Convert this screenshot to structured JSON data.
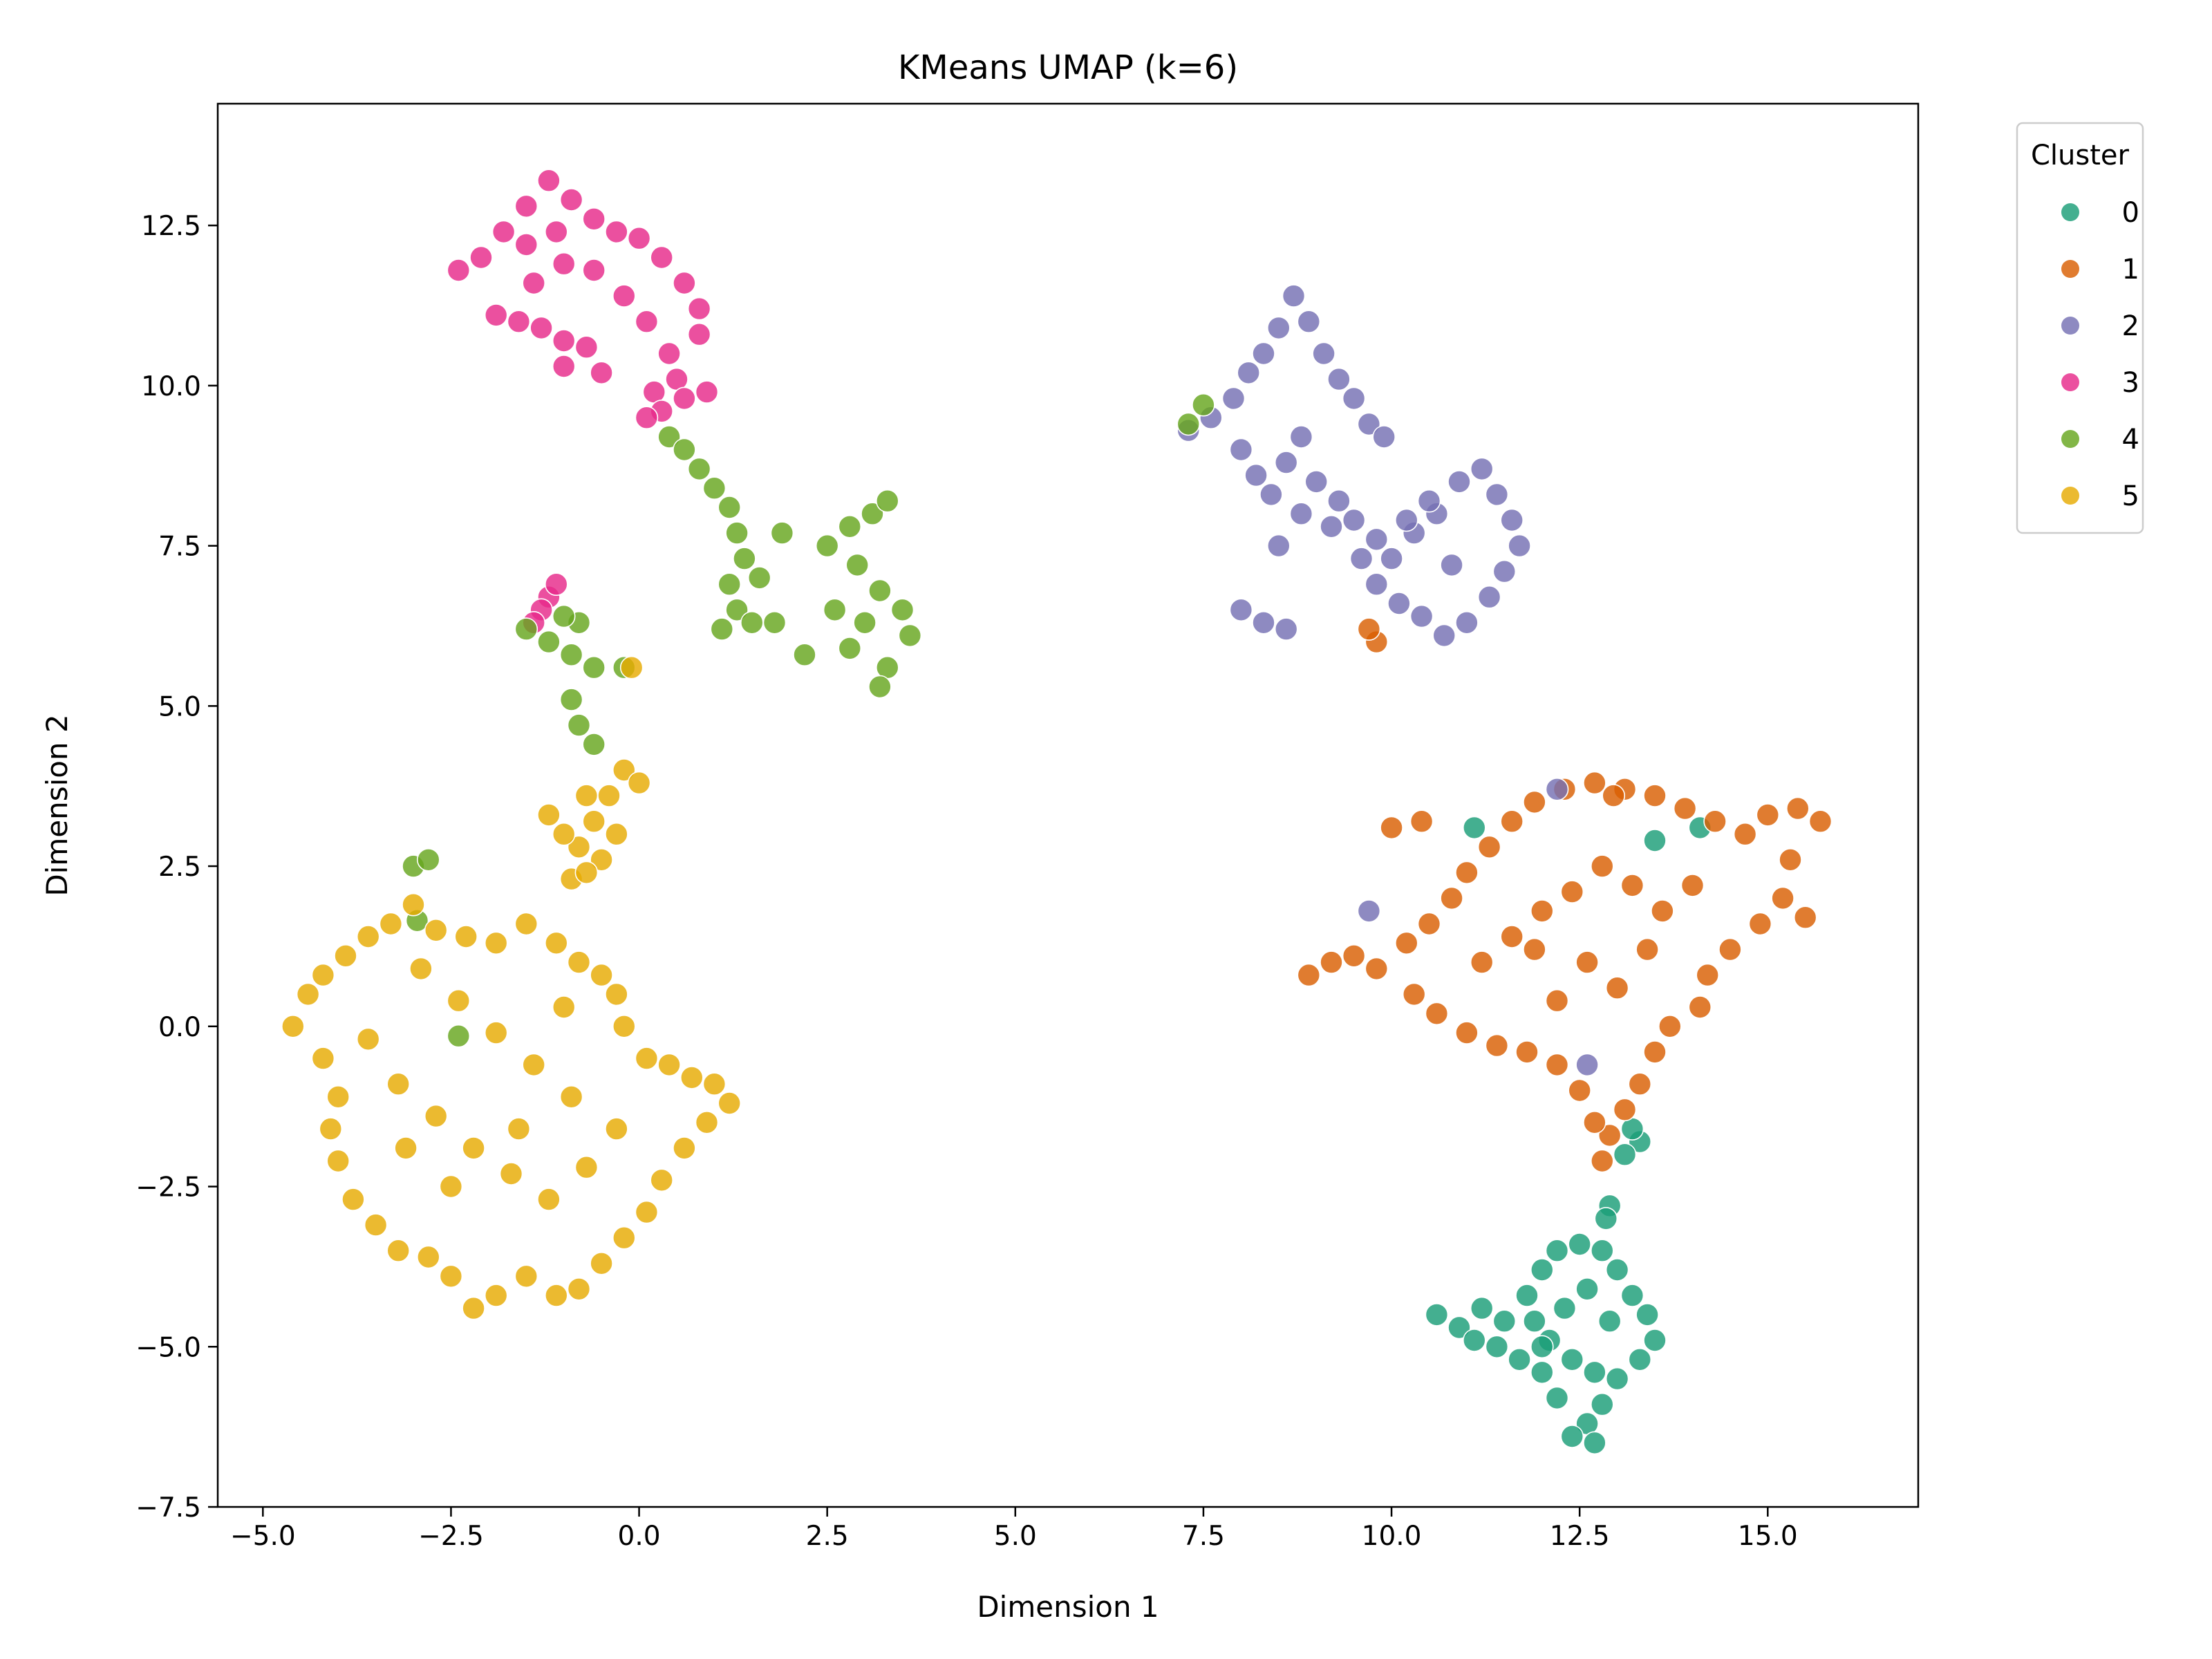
{
  "chart_data": {
    "type": "scatter",
    "title": "KMeans UMAP (k=6)",
    "xlabel": "Dimension 1",
    "ylabel": "Dimension 2",
    "xlim": [
      -5.6,
      17.0
    ],
    "ylim": [
      -7.5,
      14.4
    ],
    "xticks": [
      -5.0,
      -2.5,
      0.0,
      2.5,
      5.0,
      7.5,
      10.0,
      12.5,
      15.0
    ],
    "xtick_labels": [
      "−5.0",
      "−2.5",
      "0.0",
      "2.5",
      "5.0",
      "7.5",
      "10.0",
      "12.5",
      "15.0"
    ],
    "yticks": [
      -7.5,
      -5.0,
      -2.5,
      0.0,
      2.5,
      5.0,
      7.5,
      10.0,
      12.5
    ],
    "ytick_labels": [
      "−7.5",
      "−5.0",
      "−2.5",
      "0.0",
      "2.5",
      "5.0",
      "7.5",
      "10.0",
      "12.5"
    ],
    "grid": false,
    "legend": {
      "title": "Cluster",
      "placement": "outside-top-right"
    },
    "series": [
      {
        "name": "0",
        "color": "#1b9e77",
        "points": [
          [
            10.6,
            -4.5
          ],
          [
            10.9,
            -4.7
          ],
          [
            11.2,
            -4.4
          ],
          [
            11.5,
            -4.6
          ],
          [
            11.8,
            -4.2
          ],
          [
            12.0,
            -3.8
          ],
          [
            12.2,
            -3.5
          ],
          [
            12.5,
            -3.4
          ],
          [
            12.8,
            -3.5
          ],
          [
            13.0,
            -3.8
          ],
          [
            13.2,
            -4.2
          ],
          [
            13.4,
            -4.5
          ],
          [
            13.5,
            -4.9
          ],
          [
            13.3,
            -5.2
          ],
          [
            13.0,
            -5.5
          ],
          [
            12.8,
            -5.9
          ],
          [
            12.6,
            -6.2
          ],
          [
            12.4,
            -6.4
          ],
          [
            12.7,
            -6.5
          ],
          [
            12.2,
            -5.8
          ],
          [
            12.0,
            -5.4
          ],
          [
            11.7,
            -5.2
          ],
          [
            11.4,
            -5.0
          ],
          [
            11.1,
            -4.9
          ],
          [
            12.3,
            -4.4
          ],
          [
            12.6,
            -4.1
          ],
          [
            12.9,
            -4.6
          ],
          [
            12.1,
            -4.9
          ],
          [
            12.4,
            -5.2
          ],
          [
            12.7,
            -5.4
          ],
          [
            12.9,
            -2.8
          ],
          [
            12.85,
            -3.0
          ],
          [
            13.3,
            -1.8
          ],
          [
            13.2,
            -1.6
          ],
          [
            13.1,
            -2.0
          ],
          [
            11.1,
            3.1
          ],
          [
            14.1,
            3.1
          ],
          [
            13.5,
            2.9
          ],
          [
            12.0,
            -5.0
          ],
          [
            11.9,
            -4.6
          ]
        ]
      },
      {
        "name": "1",
        "color": "#d95f02",
        "points": [
          [
            8.9,
            0.8
          ],
          [
            9.2,
            1.0
          ],
          [
            9.5,
            1.1
          ],
          [
            9.8,
            0.9
          ],
          [
            10.2,
            1.3
          ],
          [
            10.5,
            1.6
          ],
          [
            10.8,
            2.0
          ],
          [
            11.0,
            2.4
          ],
          [
            11.3,
            2.8
          ],
          [
            11.6,
            3.2
          ],
          [
            11.9,
            3.5
          ],
          [
            12.3,
            3.7
          ],
          [
            12.7,
            3.8
          ],
          [
            13.1,
            3.7
          ],
          [
            13.5,
            3.6
          ],
          [
            13.9,
            3.4
          ],
          [
            14.3,
            3.2
          ],
          [
            14.7,
            3.0
          ],
          [
            15.0,
            3.3
          ],
          [
            15.4,
            3.4
          ],
          [
            15.7,
            3.2
          ],
          [
            15.3,
            2.6
          ],
          [
            15.2,
            2.0
          ],
          [
            14.9,
            1.6
          ],
          [
            14.5,
            1.2
          ],
          [
            14.2,
            0.8
          ],
          [
            14.1,
            0.3
          ],
          [
            13.7,
            0.0
          ],
          [
            13.5,
            -0.4
          ],
          [
            13.3,
            -0.9
          ],
          [
            13.1,
            -1.3
          ],
          [
            12.9,
            -1.7
          ],
          [
            12.8,
            -2.1
          ],
          [
            12.7,
            -1.5
          ],
          [
            12.5,
            -1.0
          ],
          [
            12.2,
            -0.6
          ],
          [
            11.8,
            -0.4
          ],
          [
            11.4,
            -0.3
          ],
          [
            11.0,
            -0.1
          ],
          [
            10.6,
            0.2
          ],
          [
            10.3,
            0.5
          ],
          [
            11.2,
            1.0
          ],
          [
            11.6,
            1.4
          ],
          [
            12.0,
            1.8
          ],
          [
            12.4,
            2.1
          ],
          [
            12.8,
            2.5
          ],
          [
            13.2,
            2.2
          ],
          [
            13.6,
            1.8
          ],
          [
            14.0,
            2.2
          ],
          [
            12.6,
            1.0
          ],
          [
            12.2,
            0.4
          ],
          [
            11.9,
            1.2
          ],
          [
            13.0,
            0.6
          ],
          [
            13.4,
            1.2
          ],
          [
            10.0,
            3.1
          ],
          [
            10.4,
            3.2
          ],
          [
            9.8,
            6.0
          ],
          [
            9.7,
            6.2
          ],
          [
            15.5,
            1.7
          ],
          [
            12.95,
            3.6
          ]
        ]
      },
      {
        "name": "2",
        "color": "#7570b3",
        "points": [
          [
            7.3,
            9.3
          ],
          [
            7.6,
            9.5
          ],
          [
            7.9,
            9.8
          ],
          [
            8.1,
            10.2
          ],
          [
            8.3,
            10.5
          ],
          [
            8.5,
            10.9
          ],
          [
            8.7,
            11.4
          ],
          [
            8.9,
            11.0
          ],
          [
            9.1,
            10.5
          ],
          [
            9.3,
            10.1
          ],
          [
            9.5,
            9.8
          ],
          [
            9.7,
            9.4
          ],
          [
            8.0,
            9.0
          ],
          [
            8.2,
            8.6
          ],
          [
            8.4,
            8.3
          ],
          [
            8.6,
            8.8
          ],
          [
            8.8,
            9.2
          ],
          [
            9.0,
            8.5
          ],
          [
            9.3,
            8.2
          ],
          [
            9.5,
            7.9
          ],
          [
            9.8,
            7.6
          ],
          [
            10.0,
            7.3
          ],
          [
            10.3,
            7.7
          ],
          [
            10.6,
            8.0
          ],
          [
            10.9,
            8.5
          ],
          [
            11.2,
            8.7
          ],
          [
            11.4,
            8.3
          ],
          [
            11.6,
            7.9
          ],
          [
            11.7,
            7.5
          ],
          [
            11.5,
            7.1
          ],
          [
            11.3,
            6.7
          ],
          [
            11.0,
            6.3
          ],
          [
            10.7,
            6.1
          ],
          [
            10.4,
            6.4
          ],
          [
            10.1,
            6.6
          ],
          [
            9.8,
            6.9
          ],
          [
            9.6,
            7.3
          ],
          [
            9.2,
            7.8
          ],
          [
            8.8,
            8.0
          ],
          [
            8.5,
            7.5
          ],
          [
            8.0,
            6.5
          ],
          [
            8.3,
            6.3
          ],
          [
            8.6,
            6.2
          ],
          [
            9.9,
            9.2
          ],
          [
            10.5,
            8.2
          ],
          [
            10.8,
            7.2
          ],
          [
            9.7,
            1.8
          ],
          [
            12.2,
            3.7
          ],
          [
            12.6,
            -0.6
          ],
          [
            10.2,
            7.9
          ]
        ]
      },
      {
        "name": "3",
        "color": "#e7298a",
        "points": [
          [
            -2.4,
            11.8
          ],
          [
            -2.1,
            12.0
          ],
          [
            -1.8,
            12.4
          ],
          [
            -1.5,
            12.8
          ],
          [
            -1.2,
            13.2
          ],
          [
            -0.9,
            12.9
          ],
          [
            -0.6,
            12.6
          ],
          [
            -0.3,
            12.4
          ],
          [
            0.0,
            12.3
          ],
          [
            0.3,
            12.0
          ],
          [
            0.6,
            11.6
          ],
          [
            0.8,
            11.2
          ],
          [
            -1.9,
            11.1
          ],
          [
            -1.6,
            11.0
          ],
          [
            -1.3,
            10.9
          ],
          [
            -1.0,
            10.7
          ],
          [
            -0.7,
            10.6
          ],
          [
            -0.5,
            10.2
          ],
          [
            -1.4,
            11.6
          ],
          [
            -1.0,
            11.9
          ],
          [
            -0.6,
            11.8
          ],
          [
            -0.2,
            11.4
          ],
          [
            0.1,
            11.0
          ],
          [
            0.4,
            10.5
          ],
          [
            0.5,
            10.1
          ],
          [
            0.2,
            9.9
          ],
          [
            0.6,
            9.8
          ],
          [
            0.9,
            9.9
          ],
          [
            0.3,
            9.6
          ],
          [
            0.1,
            9.5
          ],
          [
            -1.5,
            12.2
          ],
          [
            -1.1,
            12.4
          ],
          [
            -1.0,
            10.3
          ],
          [
            -1.2,
            6.7
          ],
          [
            -1.1,
            6.9
          ],
          [
            -1.3,
            6.5
          ],
          [
            -1.4,
            6.3
          ],
          [
            0.8,
            10.8
          ]
        ]
      },
      {
        "name": "4",
        "color": "#66a61e",
        "points": [
          [
            0.4,
            9.2
          ],
          [
            0.6,
            9.0
          ],
          [
            0.8,
            8.7
          ],
          [
            1.0,
            8.4
          ],
          [
            1.2,
            8.1
          ],
          [
            1.3,
            7.7
          ],
          [
            1.4,
            7.3
          ],
          [
            1.2,
            6.9
          ],
          [
            1.3,
            6.5
          ],
          [
            1.1,
            6.2
          ],
          [
            1.5,
            6.3
          ],
          [
            1.8,
            6.3
          ],
          [
            1.6,
            7.0
          ],
          [
            1.9,
            7.7
          ],
          [
            2.5,
            7.5
          ],
          [
            2.8,
            7.8
          ],
          [
            3.1,
            8.0
          ],
          [
            3.3,
            8.2
          ],
          [
            2.9,
            7.2
          ],
          [
            3.2,
            6.8
          ],
          [
            3.5,
            6.5
          ],
          [
            3.6,
            6.1
          ],
          [
            3.3,
            5.6
          ],
          [
            3.2,
            5.3
          ],
          [
            2.8,
            5.9
          ],
          [
            2.6,
            6.5
          ],
          [
            3.0,
            6.3
          ],
          [
            2.2,
            5.8
          ],
          [
            -1.5,
            6.2
          ],
          [
            -1.2,
            6.0
          ],
          [
            -0.9,
            5.8
          ],
          [
            -0.6,
            5.6
          ],
          [
            -0.8,
            6.3
          ],
          [
            -1.0,
            6.4
          ],
          [
            -0.9,
            5.1
          ],
          [
            -0.8,
            4.7
          ],
          [
            -0.6,
            4.4
          ],
          [
            -3.0,
            2.5
          ],
          [
            -2.8,
            2.6
          ],
          [
            -2.95,
            1.65
          ],
          [
            -2.4,
            -0.15
          ],
          [
            -0.2,
            5.6
          ],
          [
            7.3,
            9.4
          ],
          [
            7.5,
            9.7
          ]
        ]
      },
      {
        "name": "5",
        "color": "#e6ab02",
        "points": [
          [
            -4.6,
            0.0
          ],
          [
            -4.4,
            0.5
          ],
          [
            -4.2,
            0.8
          ],
          [
            -3.9,
            1.1
          ],
          [
            -3.6,
            1.4
          ],
          [
            -3.3,
            1.6
          ],
          [
            -3.0,
            1.9
          ],
          [
            -2.7,
            1.5
          ],
          [
            -2.3,
            1.4
          ],
          [
            -1.9,
            1.3
          ],
          [
            -1.5,
            1.6
          ],
          [
            -1.1,
            1.3
          ],
          [
            -0.8,
            1.0
          ],
          [
            -0.5,
            0.8
          ],
          [
            -0.3,
            0.5
          ],
          [
            -0.2,
            0.0
          ],
          [
            0.1,
            -0.5
          ],
          [
            0.4,
            -0.6
          ],
          [
            0.7,
            -0.8
          ],
          [
            1.0,
            -0.9
          ],
          [
            1.2,
            -1.2
          ],
          [
            0.9,
            -1.5
          ],
          [
            0.6,
            -1.9
          ],
          [
            0.3,
            -2.4
          ],
          [
            0.1,
            -2.9
          ],
          [
            -0.2,
            -3.3
          ],
          [
            -0.5,
            -3.7
          ],
          [
            -0.8,
            -4.1
          ],
          [
            -1.1,
            -4.2
          ],
          [
            -1.5,
            -3.9
          ],
          [
            -1.9,
            -4.2
          ],
          [
            -2.2,
            -4.4
          ],
          [
            -2.5,
            -3.9
          ],
          [
            -2.8,
            -3.6
          ],
          [
            -3.2,
            -3.5
          ],
          [
            -3.5,
            -3.1
          ],
          [
            -3.8,
            -2.7
          ],
          [
            -4.0,
            -2.1
          ],
          [
            -4.1,
            -1.6
          ],
          [
            -4.0,
            -1.1
          ],
          [
            -4.2,
            -0.5
          ],
          [
            -3.6,
            -0.2
          ],
          [
            -3.2,
            -0.9
          ],
          [
            -2.7,
            -1.4
          ],
          [
            -2.2,
            -1.9
          ],
          [
            -1.7,
            -2.3
          ],
          [
            -1.2,
            -2.7
          ],
          [
            -0.7,
            -2.2
          ],
          [
            -0.3,
            -1.6
          ],
          [
            -0.9,
            -1.1
          ],
          [
            -1.4,
            -0.6
          ],
          [
            -1.9,
            -0.1
          ],
          [
            -2.4,
            0.4
          ],
          [
            -2.9,
            0.9
          ],
          [
            -1.0,
            0.3
          ],
          [
            -1.6,
            -1.6
          ],
          [
            -2.5,
            -2.5
          ],
          [
            -3.1,
            -1.9
          ],
          [
            -0.9,
            2.3
          ],
          [
            -0.8,
            2.8
          ],
          [
            -0.6,
            3.2
          ],
          [
            -0.4,
            3.6
          ],
          [
            -0.2,
            4.0
          ],
          [
            0.0,
            3.8
          ],
          [
            -0.3,
            3.0
          ],
          [
            -0.5,
            2.6
          ],
          [
            -0.7,
            2.4
          ],
          [
            -1.0,
            3.0
          ],
          [
            -1.2,
            3.3
          ],
          [
            -0.7,
            3.6
          ],
          [
            -0.1,
            5.6
          ]
        ]
      }
    ]
  }
}
